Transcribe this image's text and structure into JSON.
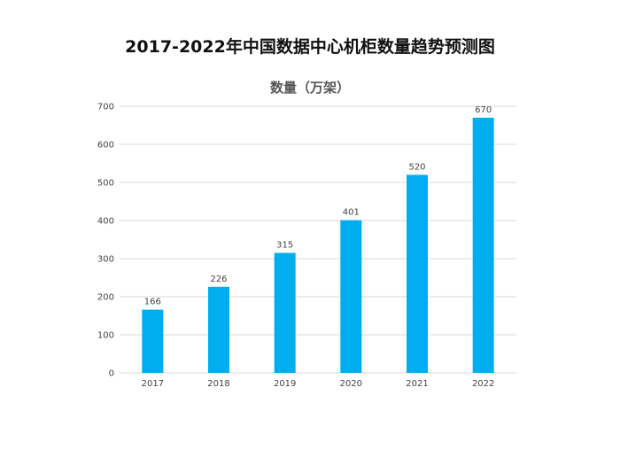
{
  "page_title": "2017-2022年中国数据中心机柜数量趋势预测图",
  "chart_data": {
    "type": "bar",
    "title": "数量（万架）",
    "xlabel": "",
    "ylabel": "",
    "categories": [
      "2017",
      "2018",
      "2019",
      "2020",
      "2021",
      "2022"
    ],
    "values": [
      166,
      226,
      315,
      401,
      520,
      670
    ],
    "data_labels": [
      "166",
      "226",
      "315",
      "401",
      "520",
      "670"
    ],
    "ylim": [
      0,
      700
    ],
    "yticks": [
      0,
      100,
      200,
      300,
      400,
      500,
      600,
      700
    ],
    "grid": true,
    "legend": false,
    "bar_color": "#00AEEF",
    "grid_color": "#D9D9D9"
  }
}
